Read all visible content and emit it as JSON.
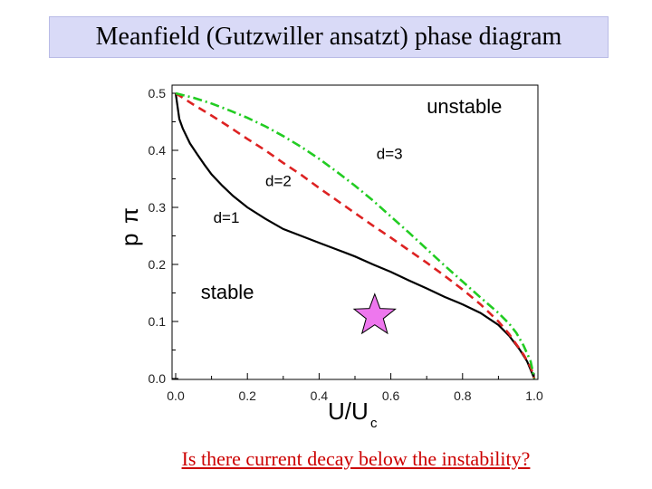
{
  "slide": {
    "title": "Meanfield (Gutzwiller ansatzt) phase diagram",
    "question": "Is there current decay below the instability?"
  },
  "chart_data": {
    "type": "line",
    "xlabel_main": "U/U",
    "xlabel_sub": "c",
    "ylabel_rho": "p",
    "ylabel_pi": "π",
    "xlim": [
      0.0,
      1.0
    ],
    "ylim": [
      0.0,
      0.5
    ],
    "x_ticks": [
      "0.0",
      "0.2",
      "0.4",
      "0.6",
      "0.8",
      "1.0"
    ],
    "y_ticks": [
      "0.0",
      "0.1",
      "0.2",
      "0.3",
      "0.4",
      "0.5"
    ],
    "grid": false,
    "series": [
      {
        "name": "d=1",
        "color": "#000000",
        "style": "solid",
        "points": [
          [
            0.0,
            0.5
          ],
          [
            0.01,
            0.455
          ],
          [
            0.02,
            0.438
          ],
          [
            0.04,
            0.412
          ],
          [
            0.06,
            0.393
          ],
          [
            0.08,
            0.375
          ],
          [
            0.1,
            0.358
          ],
          [
            0.13,
            0.338
          ],
          [
            0.16,
            0.32
          ],
          [
            0.2,
            0.3
          ],
          [
            0.25,
            0.28
          ],
          [
            0.3,
            0.262
          ],
          [
            0.35,
            0.25
          ],
          [
            0.4,
            0.238
          ],
          [
            0.45,
            0.226
          ],
          [
            0.5,
            0.214
          ],
          [
            0.55,
            0.2
          ],
          [
            0.6,
            0.187
          ],
          [
            0.65,
            0.172
          ],
          [
            0.7,
            0.158
          ],
          [
            0.75,
            0.143
          ],
          [
            0.8,
            0.13
          ],
          [
            0.85,
            0.115
          ],
          [
            0.9,
            0.094
          ],
          [
            0.93,
            0.075
          ],
          [
            0.96,
            0.05
          ],
          [
            0.98,
            0.03
          ],
          [
            1.0,
            0.0
          ]
        ]
      },
      {
        "name": "d=2",
        "color": "#dd2222",
        "style": "dashed",
        "points": [
          [
            0.0,
            0.5
          ],
          [
            0.05,
            0.48
          ],
          [
            0.1,
            0.461
          ],
          [
            0.15,
            0.441
          ],
          [
            0.2,
            0.42
          ],
          [
            0.25,
            0.4
          ],
          [
            0.3,
            0.378
          ],
          [
            0.35,
            0.357
          ],
          [
            0.4,
            0.334
          ],
          [
            0.45,
            0.312
          ],
          [
            0.5,
            0.29
          ],
          [
            0.55,
            0.268
          ],
          [
            0.6,
            0.247
          ],
          [
            0.65,
            0.225
          ],
          [
            0.7,
            0.203
          ],
          [
            0.75,
            0.18
          ],
          [
            0.8,
            0.156
          ],
          [
            0.85,
            0.13
          ],
          [
            0.9,
            0.1
          ],
          [
            0.93,
            0.078
          ],
          [
            0.95,
            0.06
          ],
          [
            0.97,
            0.042
          ],
          [
            0.99,
            0.02
          ],
          [
            1.0,
            0.0
          ]
        ]
      },
      {
        "name": "d=3",
        "color": "#22cc22",
        "style": "dashdot",
        "points": [
          [
            0.0,
            0.5
          ],
          [
            0.05,
            0.492
          ],
          [
            0.1,
            0.482
          ],
          [
            0.15,
            0.47
          ],
          [
            0.2,
            0.457
          ],
          [
            0.25,
            0.442
          ],
          [
            0.3,
            0.425
          ],
          [
            0.35,
            0.406
          ],
          [
            0.4,
            0.385
          ],
          [
            0.45,
            0.362
          ],
          [
            0.5,
            0.338
          ],
          [
            0.55,
            0.312
          ],
          [
            0.6,
            0.284
          ],
          [
            0.65,
            0.256
          ],
          [
            0.7,
            0.227
          ],
          [
            0.75,
            0.198
          ],
          [
            0.8,
            0.17
          ],
          [
            0.85,
            0.142
          ],
          [
            0.9,
            0.115
          ],
          [
            0.93,
            0.096
          ],
          [
            0.95,
            0.08
          ],
          [
            0.97,
            0.058
          ],
          [
            0.99,
            0.03
          ],
          [
            1.0,
            0.0
          ]
        ]
      }
    ],
    "annotations": [
      {
        "text": "unstable",
        "x": 0.7,
        "y": 0.465,
        "size": 22
      },
      {
        "text": "d=3",
        "x": 0.56,
        "y": 0.385,
        "size": 17
      },
      {
        "text": "d=2",
        "x": 0.25,
        "y": 0.337,
        "size": 17
      },
      {
        "text": "d=1",
        "x": 0.105,
        "y": 0.273,
        "size": 17
      },
      {
        "text": "stable",
        "x": 0.07,
        "y": 0.14,
        "size": 22
      }
    ],
    "marker": {
      "shape": "star",
      "x": 0.555,
      "y": 0.11,
      "color": "#ee77ee"
    }
  }
}
